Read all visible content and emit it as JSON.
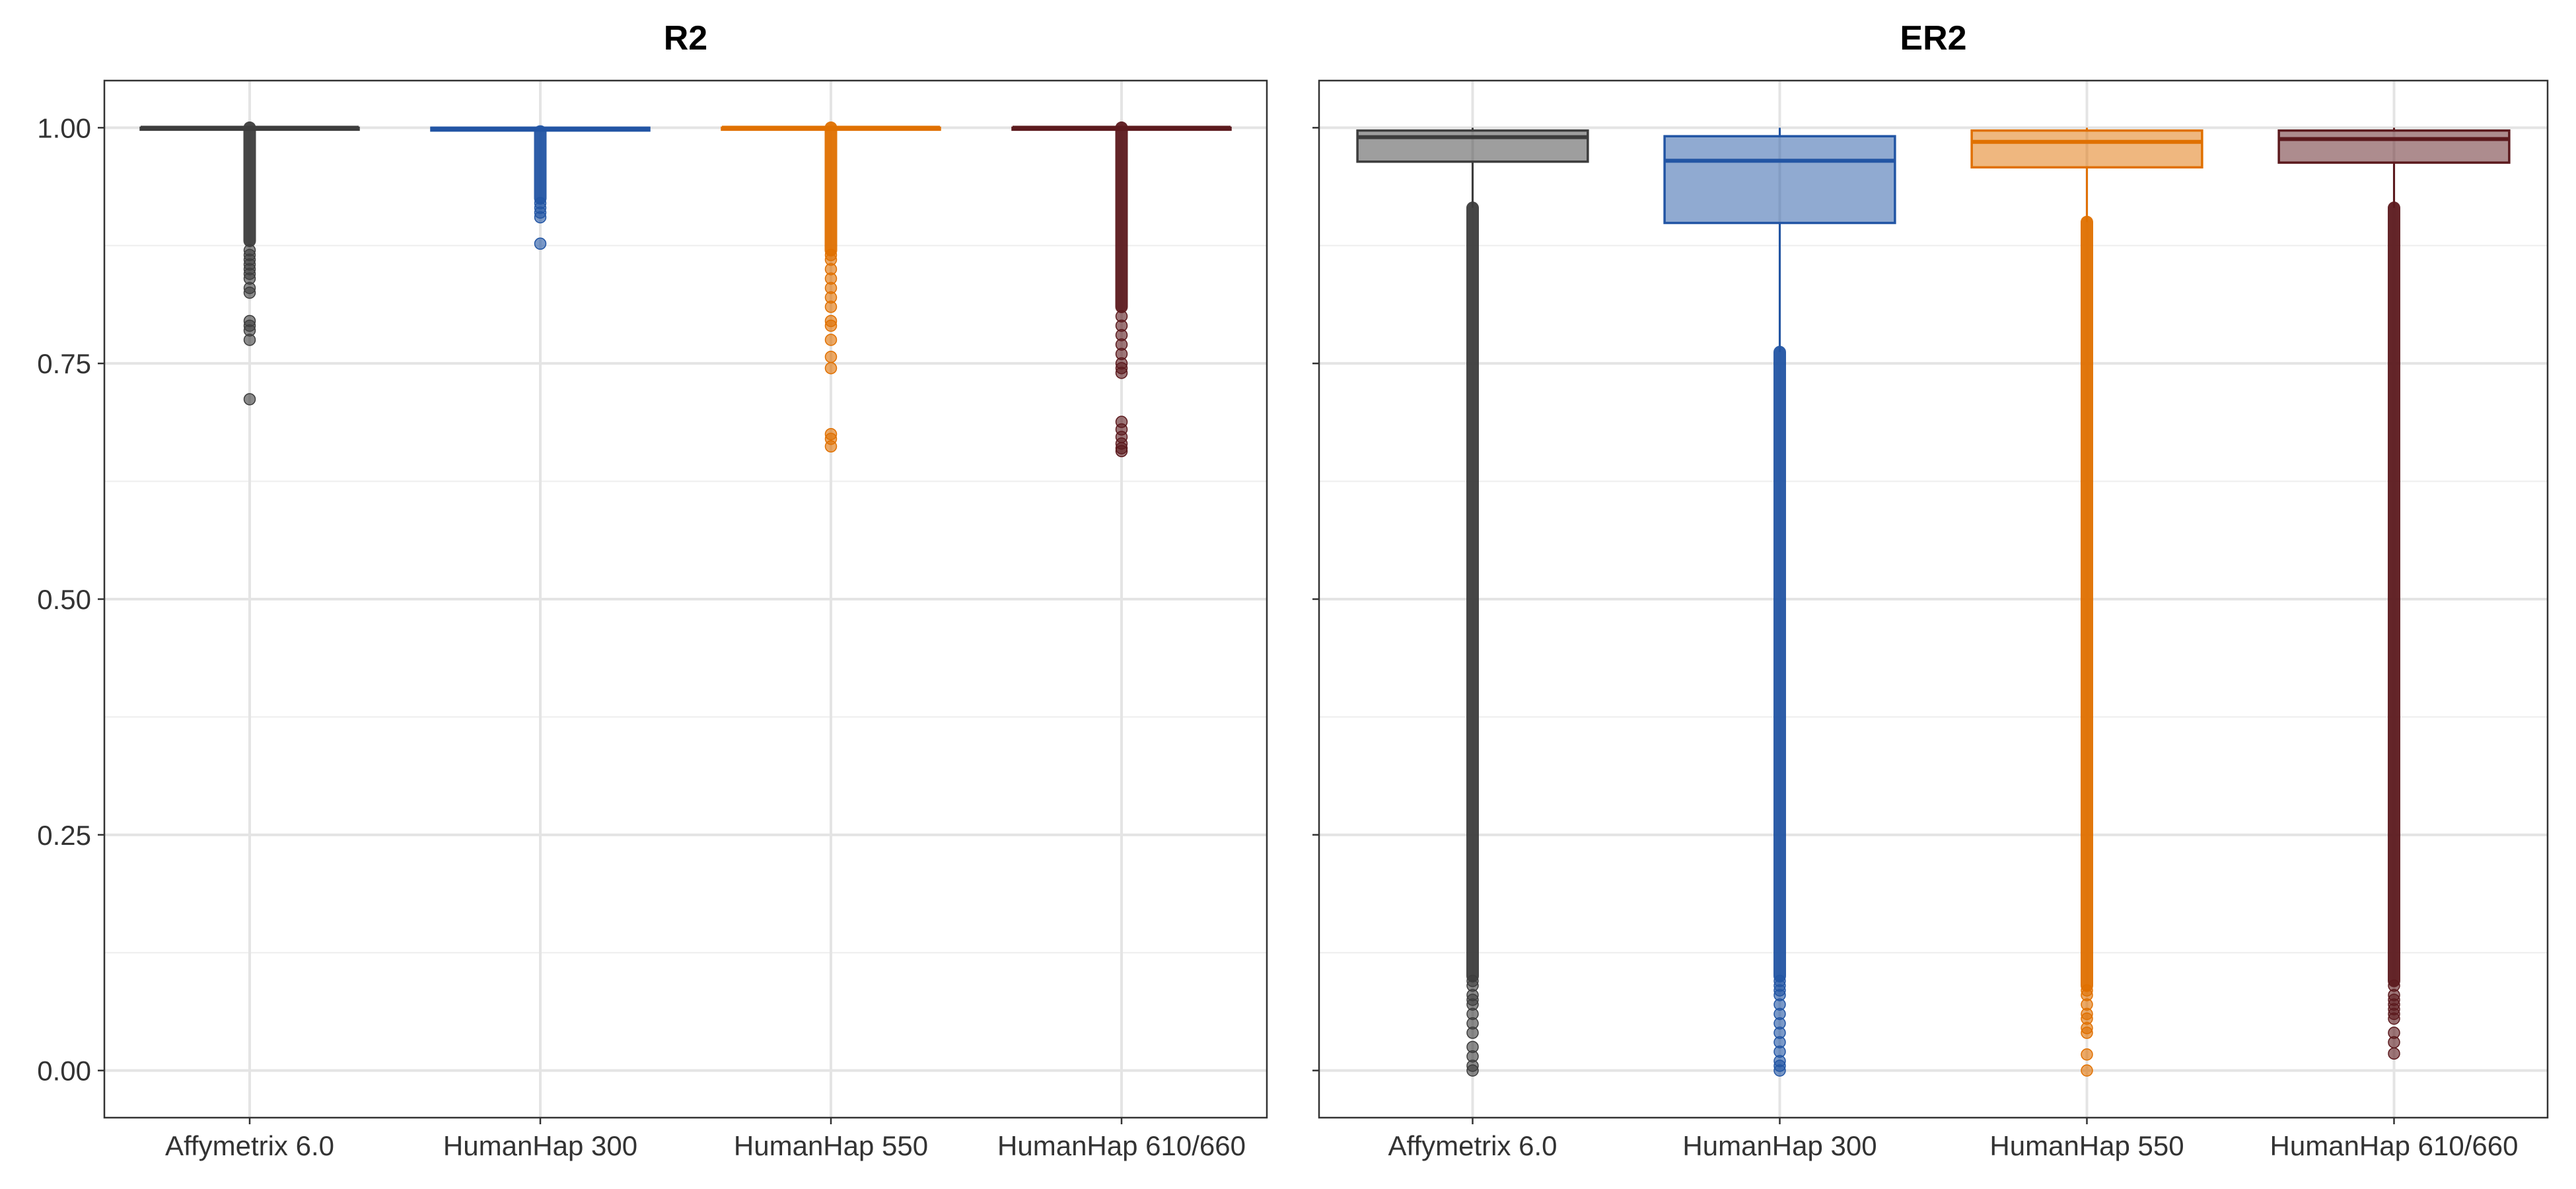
{
  "chart_data": [
    {
      "type": "box",
      "title": "R2",
      "xlabel": "",
      "ylabel": "",
      "ylim": [
        -0.05,
        1.05
      ],
      "yticks": [
        "0.00",
        "0.25",
        "0.50",
        "0.75",
        "1.00"
      ],
      "grid": true,
      "categories": [
        "Affymetrix 6.0",
        "HumanHap 300",
        "HumanHap 550",
        "HumanHap 610/660"
      ],
      "colors": [
        "#3d3d3d",
        "#2255a4",
        "#e07000",
        "#5c1a1e"
      ],
      "series": [
        {
          "category": "Affymetrix 6.0",
          "min": 1.0,
          "q1": 0.999,
          "median": 1.0,
          "q3": 1.0,
          "max": 1.0,
          "whisker_low": 0.999,
          "outlier_band": [
            0.88,
            1.0
          ],
          "outliers": [
            0.87,
            0.865,
            0.86,
            0.855,
            0.85,
            0.845,
            0.84,
            0.83,
            0.825,
            0.795,
            0.79,
            0.785,
            0.775,
            0.712
          ]
        },
        {
          "category": "HumanHap 300",
          "min": 0.996,
          "q1": 0.997,
          "median": 0.999,
          "q3": 1.0,
          "max": 1.0,
          "whisker_low": 0.996,
          "outlier_band": [
            0.925,
            0.996
          ],
          "outliers": [
            0.92,
            0.915,
            0.91,
            0.905,
            0.877
          ]
        },
        {
          "category": "HumanHap 550",
          "min": 1.0,
          "q1": 0.999,
          "median": 1.0,
          "q3": 1.0,
          "max": 1.0,
          "whisker_low": 0.999,
          "outlier_band": [
            0.87,
            1.0
          ],
          "outliers": [
            0.865,
            0.86,
            0.85,
            0.84,
            0.83,
            0.82,
            0.81,
            0.795,
            0.79,
            0.775,
            0.757,
            0.745,
            0.675,
            0.67,
            0.662
          ]
        },
        {
          "category": "HumanHap 610/660",
          "min": 1.0,
          "q1": 0.999,
          "median": 1.0,
          "q3": 1.0,
          "max": 1.0,
          "whisker_low": 0.999,
          "outlier_band": [
            0.81,
            1.0
          ],
          "outliers": [
            0.8,
            0.79,
            0.78,
            0.77,
            0.76,
            0.75,
            0.745,
            0.74,
            0.688,
            0.68,
            0.672,
            0.665,
            0.66,
            0.657
          ]
        }
      ]
    },
    {
      "type": "box",
      "title": "ER2",
      "xlabel": "",
      "ylabel": "",
      "ylim": [
        -0.05,
        1.05
      ],
      "yticks": [
        "0.00",
        "0.25",
        "0.50",
        "0.75",
        "1.00"
      ],
      "grid": true,
      "categories": [
        "Affymetrix 6.0",
        "HumanHap 300",
        "HumanHap 550",
        "HumanHap 610/660"
      ],
      "colors": [
        "#3d3d3d",
        "#2255a4",
        "#e07000",
        "#5c1a1e"
      ],
      "series": [
        {
          "category": "Affymetrix 6.0",
          "q1": 0.964,
          "median": 0.99,
          "q3": 0.997,
          "max": 1.0,
          "whisker_low": 0.915,
          "outlier_band": [
            0.1,
            0.915
          ],
          "outliers": [
            0.095,
            0.09,
            0.08,
            0.075,
            0.07,
            0.06,
            0.05,
            0.04,
            0.025,
            0.015,
            0.005,
            0.0
          ]
        },
        {
          "category": "HumanHap 300",
          "q1": 0.899,
          "median": 0.965,
          "q3": 0.991,
          "max": 1.0,
          "whisker_low": 0.762,
          "outlier_band": [
            0.1,
            0.762
          ],
          "outliers": [
            0.095,
            0.09,
            0.085,
            0.08,
            0.07,
            0.06,
            0.05,
            0.04,
            0.03,
            0.02,
            0.01,
            0.005,
            0.0
          ]
        },
        {
          "category": "HumanHap 550",
          "q1": 0.958,
          "median": 0.985,
          "q3": 0.997,
          "max": 1.0,
          "whisker_low": 0.9,
          "outlier_band": [
            0.09,
            0.9
          ],
          "outliers": [
            0.085,
            0.08,
            0.07,
            0.06,
            0.055,
            0.045,
            0.04,
            0.017,
            0.0
          ]
        },
        {
          "category": "HumanHap 610/660",
          "q1": 0.963,
          "median": 0.988,
          "q3": 0.997,
          "max": 1.0,
          "whisker_low": 0.915,
          "outlier_band": [
            0.095,
            0.915
          ],
          "outliers": [
            0.09,
            0.08,
            0.075,
            0.07,
            0.065,
            0.06,
            0.055,
            0.04,
            0.03,
            0.018
          ]
        }
      ]
    }
  ]
}
